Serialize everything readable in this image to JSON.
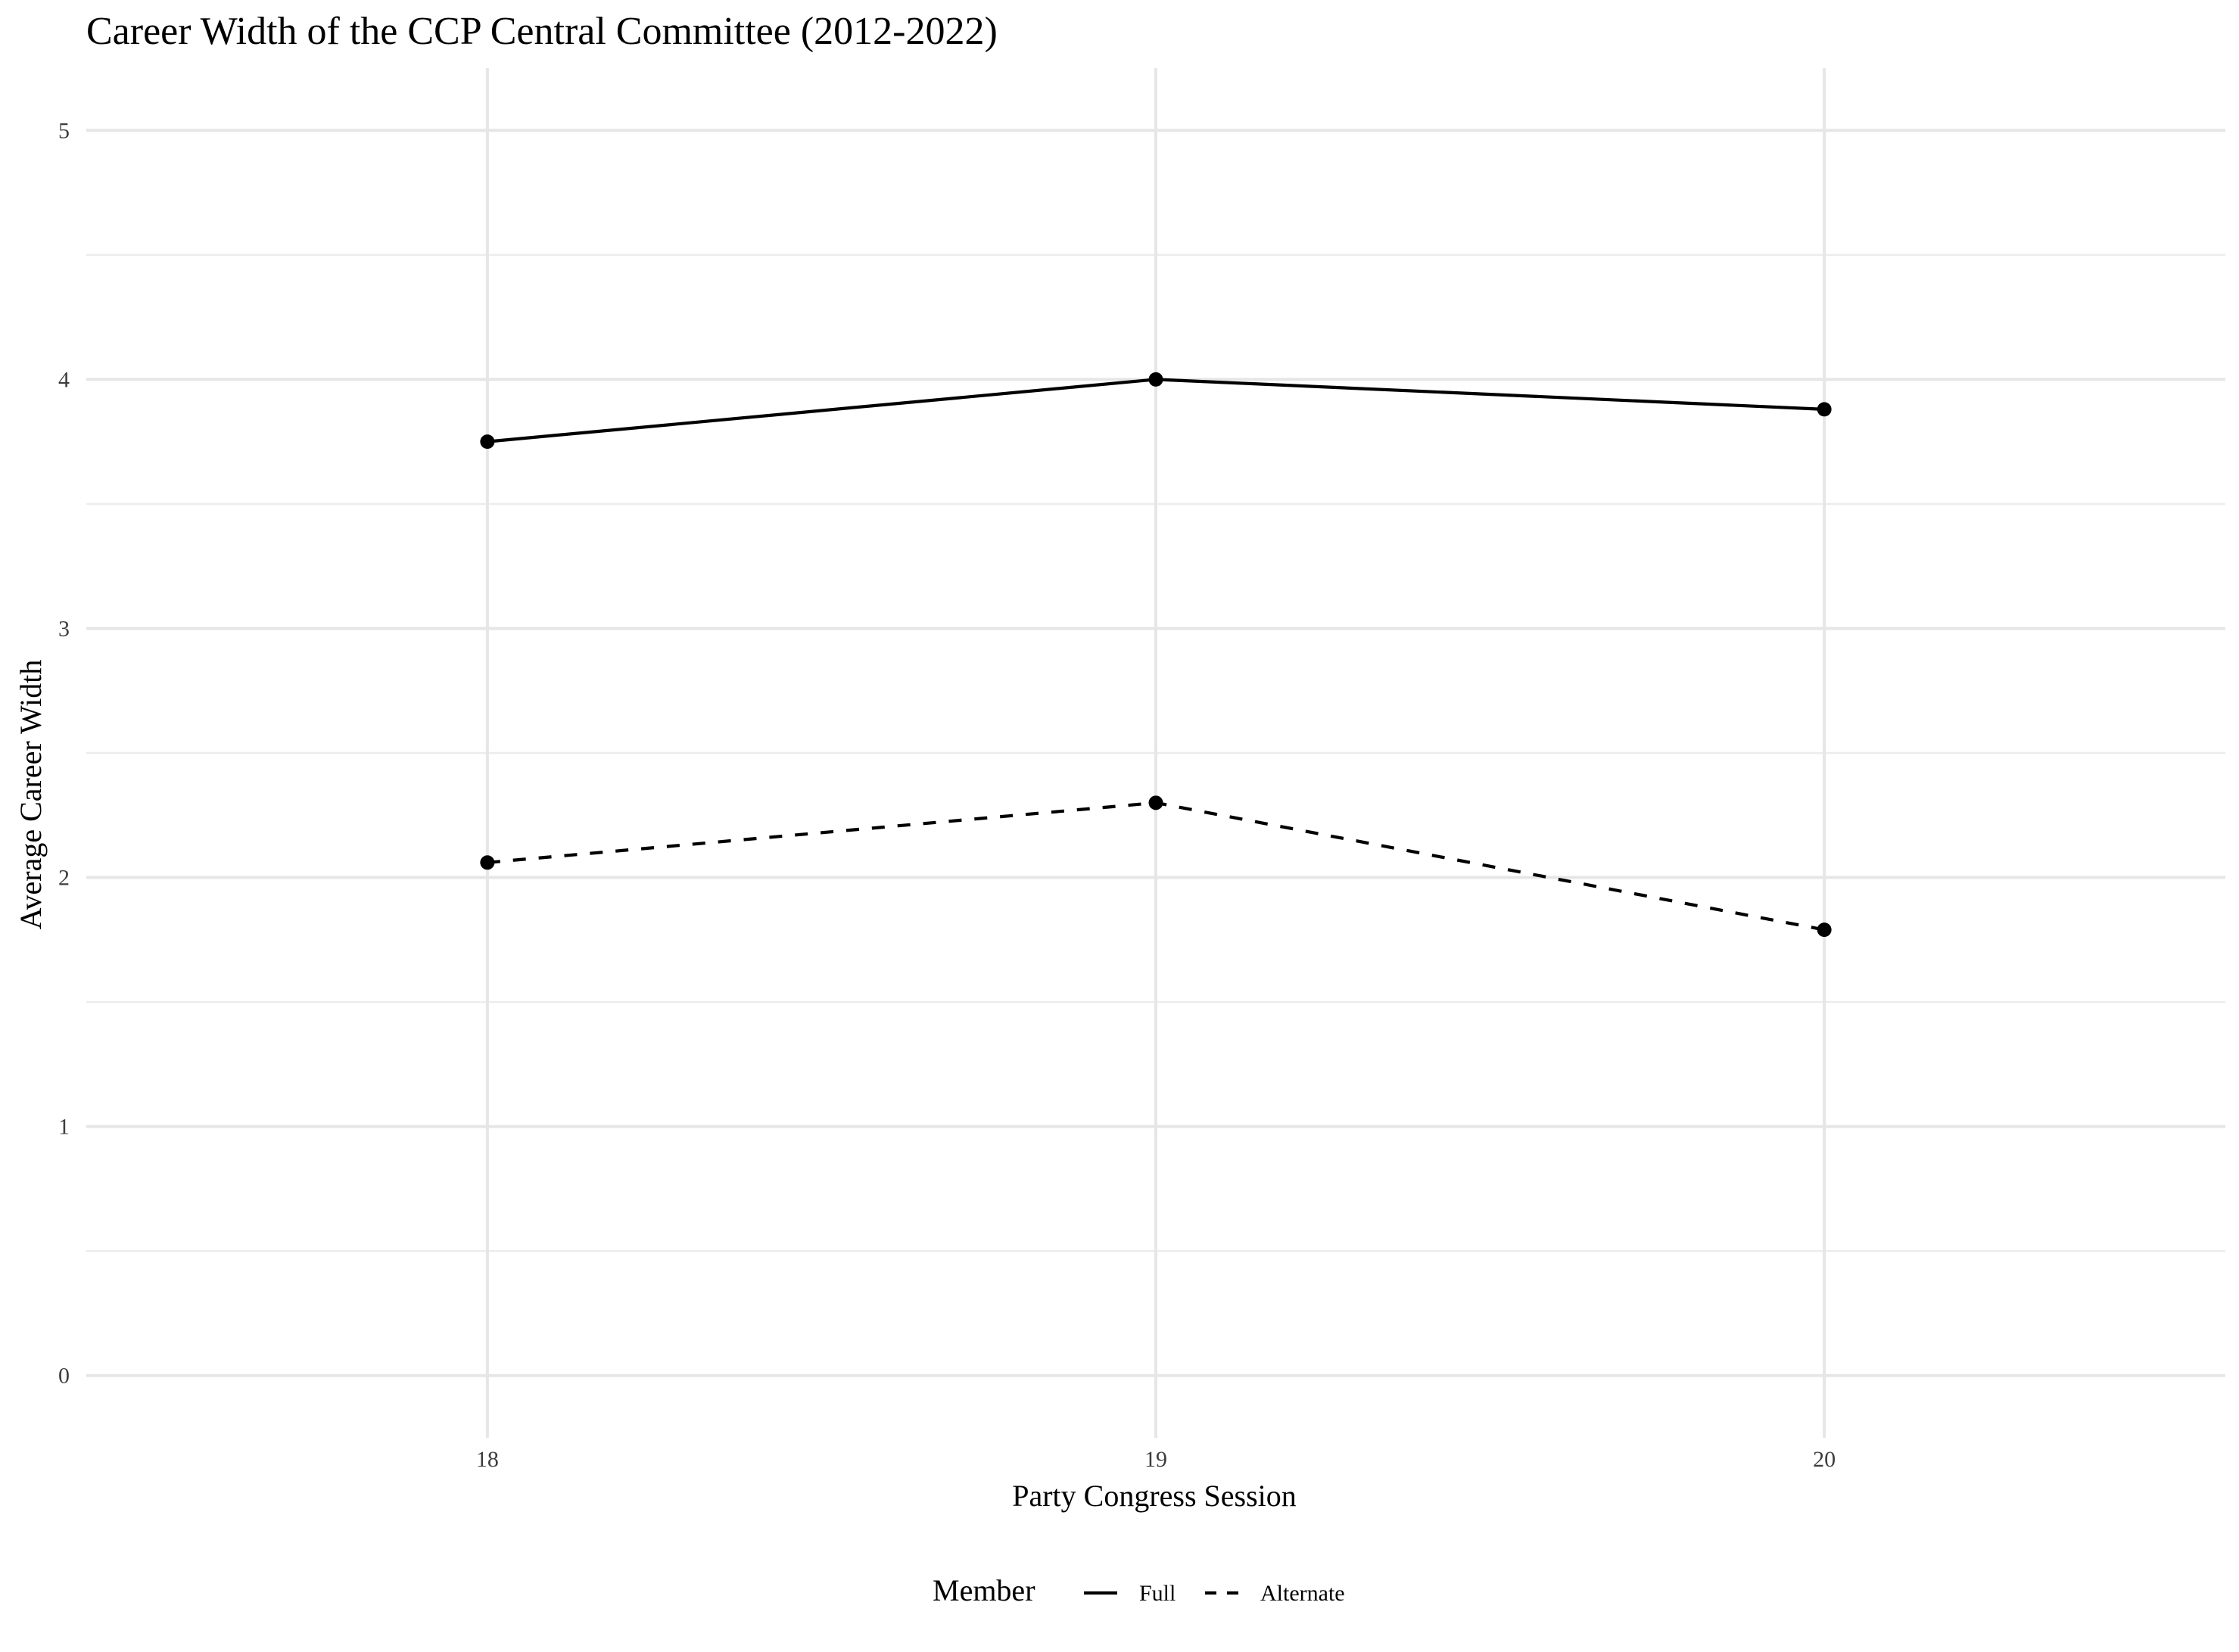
{
  "chart_data": {
    "type": "line",
    "title": "Career Width of the CCP Central Committee (2012-2022)",
    "xlabel": "Party Congress Session",
    "ylabel": "Average Career Width",
    "x": [
      18,
      19,
      20
    ],
    "x_tick_labels": [
      "18",
      "19",
      "20"
    ],
    "xlim": [
      17.4,
      20.6
    ],
    "ylim": [
      -0.25,
      5.25
    ],
    "y_ticks": [
      0,
      1,
      2,
      3,
      4,
      5
    ],
    "y_tick_labels": [
      "0",
      "1",
      "2",
      "3",
      "4",
      "5"
    ],
    "grid": true,
    "legend": {
      "title": "Member",
      "placement": "bottom"
    },
    "series": [
      {
        "name": "Full",
        "linestyle": "solid",
        "color": "#000000",
        "values": [
          3.75,
          4.0,
          3.88
        ]
      },
      {
        "name": "Alternate",
        "linestyle": "dashed",
        "color": "#000000",
        "values": [
          2.06,
          2.3,
          1.79
        ]
      }
    ]
  }
}
